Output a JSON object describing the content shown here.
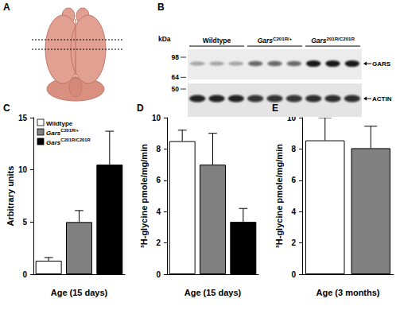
{
  "figure": {
    "A": {
      "label": "A"
    },
    "B": {
      "label": "B",
      "unit": "kDa",
      "markers": [
        98,
        64,
        50
      ],
      "groups": [
        "Wildtype",
        "GarsC201R/+",
        "Gars201R/C201R"
      ],
      "lanes_per_group": 3,
      "bands": [
        "GARS",
        "ACTIN"
      ]
    }
  },
  "chart_data": [
    {
      "panel": "C",
      "type": "bar",
      "x_label": "Age (15 days)",
      "y_label": "Arbitrary units",
      "categories": [
        "Wildtype",
        "GarsC201R/+",
        "GarsC201R/C201R"
      ],
      "values": [
        1.3,
        5.0,
        10.5
      ],
      "errors": [
        0.3,
        1.1,
        3.2
      ],
      "colors": [
        "#ffffff",
        "#808080",
        "#000000"
      ],
      "ylim": [
        0,
        15
      ],
      "yticks": [
        0,
        5,
        10,
        15
      ],
      "grid": false,
      "tick_labels": "y",
      "legend": "upper left"
    },
    {
      "panel": "D",
      "type": "bar",
      "x_label": "Age (15 days)",
      "y_label": "³H-glycine pmole/mg/min",
      "categories": [
        "Wildtype",
        "GarsC201R/+",
        "GarsC201R/C201R"
      ],
      "values": [
        8.5,
        7.0,
        3.35
      ],
      "errors": [
        0.7,
        2.0,
        0.85
      ],
      "colors": [
        "#ffffff",
        "#808080",
        "#000000"
      ],
      "ylim": [
        0,
        10
      ],
      "yticks": [
        0,
        2,
        4,
        6,
        8,
        10
      ],
      "grid": false,
      "tick_labels": "y"
    },
    {
      "panel": "E",
      "type": "bar",
      "x_label": "Age (3 months)",
      "y_label": "³H-glycine pmole/mg/min",
      "categories": [
        "Wildtype",
        "GarsC201R/+"
      ],
      "values": [
        8.55,
        8.05
      ],
      "errors": [
        1.45,
        1.4
      ],
      "colors": [
        "#ffffff",
        "#808080"
      ],
      "ylim": [
        0,
        10
      ],
      "yticks": [
        0,
        2,
        4,
        6,
        8,
        10
      ],
      "grid": false,
      "tick_labels": "y"
    }
  ]
}
